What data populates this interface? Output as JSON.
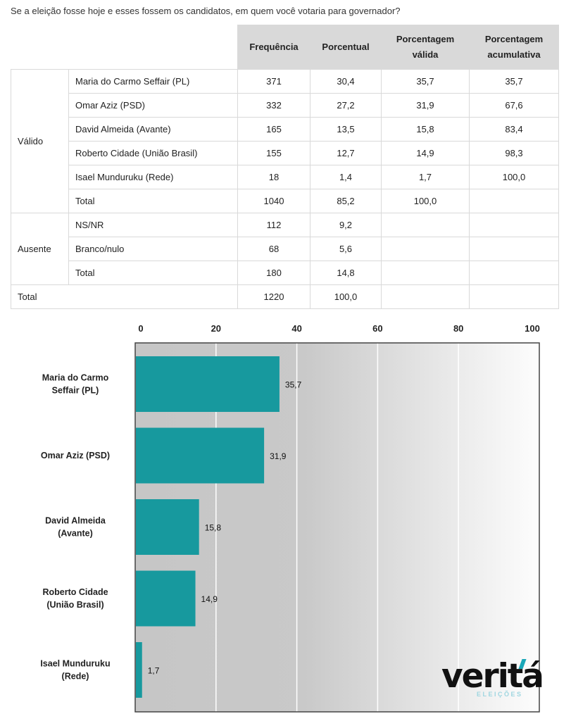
{
  "question": "Se a eleição fosse hoje e esses fossem os candidatos, em quem você votaria para governador?",
  "table": {
    "headers": [
      "Frequência",
      "Porcentual",
      "Porcentagem válida",
      "Porcentagem acumulativa"
    ],
    "groups": [
      {
        "label": "Válido",
        "rows": [
          {
            "label": "Maria do Carmo Seffair (PL)",
            "cells": [
              "371",
              "30,4",
              "35,7",
              "35,7"
            ]
          },
          {
            "label": "Omar Aziz (PSD)",
            "cells": [
              "332",
              "27,2",
              "31,9",
              "67,6"
            ]
          },
          {
            "label": "David Almeida (Avante)",
            "cells": [
              "165",
              "13,5",
              "15,8",
              "83,4"
            ]
          },
          {
            "label": "Roberto Cidade (União Brasil)",
            "cells": [
              "155",
              "12,7",
              "14,9",
              "98,3"
            ]
          },
          {
            "label": "Isael Munduruku (Rede)",
            "cells": [
              "18",
              "1,4",
              "1,7",
              "100,0"
            ]
          },
          {
            "label": "Total",
            "cells": [
              "1040",
              "85,2",
              "100,0",
              ""
            ]
          }
        ]
      },
      {
        "label": "Ausente",
        "rows": [
          {
            "label": "NS/NR",
            "cells": [
              "112",
              "9,2",
              "",
              ""
            ]
          },
          {
            "label": "Branco/nulo",
            "cells": [
              "68",
              "5,6",
              "",
              ""
            ]
          },
          {
            "label": "Total",
            "cells": [
              "180",
              "14,8",
              "",
              ""
            ]
          }
        ]
      }
    ],
    "total": {
      "label": "Total",
      "cells": [
        "1220",
        "100,0",
        "",
        ""
      ]
    }
  },
  "chart_data": {
    "type": "bar",
    "orientation": "horizontal",
    "categories": [
      [
        "Maria do Carmo",
        "Seffair (PL)"
      ],
      [
        "Omar Aziz (PSD)"
      ],
      [
        "David Almeida",
        "(Avante)"
      ],
      [
        "Roberto Cidade",
        "(União Brasil)"
      ],
      [
        "Isael Munduruku",
        "(Rede)"
      ]
    ],
    "values": [
      35.7,
      31.9,
      15.8,
      14.9,
      1.7
    ],
    "value_labels": [
      "35,7",
      "31,9",
      "15,8",
      "14,9",
      "1,7"
    ],
    "xlim": [
      0,
      100
    ],
    "x_ticks": [
      0,
      20,
      40,
      60,
      80,
      100
    ],
    "axis_position": "top",
    "grid": true,
    "bar_color": "#17999e"
  },
  "logo": {
    "word": "veritá",
    "sub": "ELEIÇÕES"
  }
}
